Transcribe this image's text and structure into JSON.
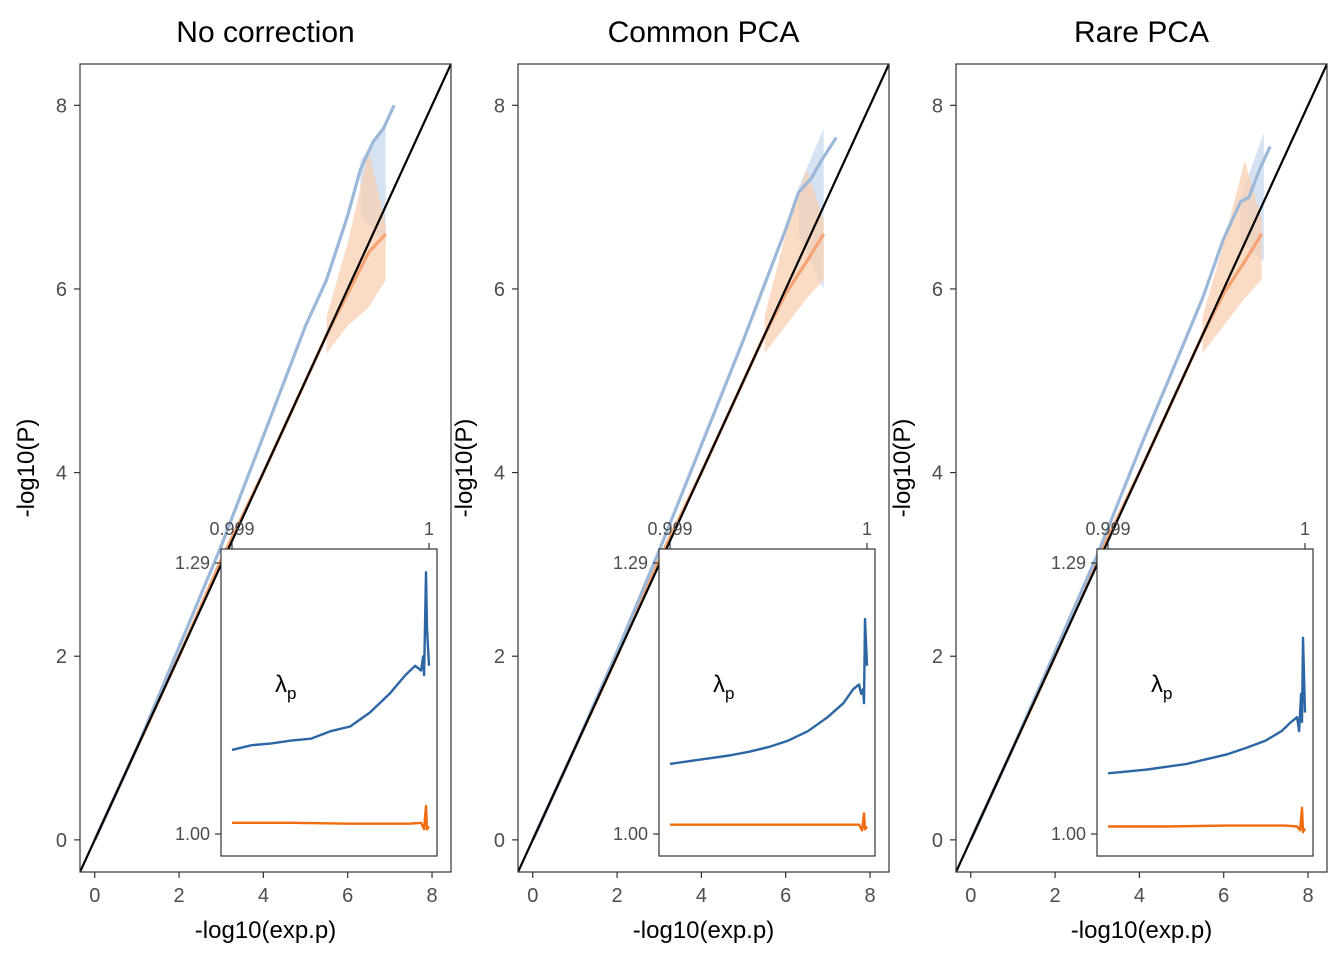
{
  "colors": {
    "observed_line": "#9bb8d8",
    "observed_band": "#c7d8ec",
    "expected_line": "#f4a371",
    "expected_band": "#f8cfb2",
    "diagonal": "#000000",
    "inset_blue": "#2c66a5",
    "inset_orange": "#f26b0f",
    "frame": "#333333",
    "tick_text": "#4d4d4d"
  },
  "chart_data": [
    {
      "type": "line",
      "title": "No correction",
      "xlabel": "-log10(exp.p)",
      "ylabel": "-log10(P)",
      "xlim": [
        -0.35,
        8.45
      ],
      "ylim": [
        -0.35,
        8.45
      ],
      "x_ticks": [
        "0",
        "2",
        "4",
        "6",
        "8"
      ],
      "y_ticks": [
        "0",
        "2",
        "4",
        "6",
        "8"
      ],
      "diagonal": true,
      "series": [
        {
          "color": "#9bb8d8",
          "points": [
            [
              0,
              0
            ],
            [
              1,
              1.0
            ],
            [
              2,
              2.1
            ],
            [
              3,
              3.2
            ],
            [
              4,
              4.4
            ],
            [
              5,
              5.6
            ],
            [
              5.5,
              6.1
            ],
            [
              6,
              6.8
            ],
            [
              6.3,
              7.3
            ],
            [
              6.6,
              7.6
            ],
            [
              6.85,
              7.75
            ],
            [
              7.1,
              8.0
            ]
          ],
          "band": {
            "x": [
              6.3,
              6.9
            ],
            "upper": [
              7.4,
              7.8
            ],
            "lower": [
              6.8,
              6.5
            ]
          }
        },
        {
          "color": "#f4a371",
          "points": [
            [
              0,
              0
            ],
            [
              1,
              1.0
            ],
            [
              2,
              2.0
            ],
            [
              3,
              3.05
            ],
            [
              4,
              4.0
            ],
            [
              5,
              5.0
            ],
            [
              5.5,
              5.5
            ],
            [
              6,
              5.95
            ],
            [
              6.5,
              6.4
            ],
            [
              6.9,
              6.6
            ]
          ],
          "band": {
            "x": [
              5.5,
              6.0,
              6.5,
              6.9
            ],
            "upper": [
              5.7,
              6.5,
              7.5,
              6.7
            ],
            "lower": [
              5.3,
              5.6,
              5.8,
              6.1
            ]
          }
        }
      ],
      "inset": {
        "x_ticks": [
          "0.999",
          "1"
        ],
        "y_ticks": [
          "1.29",
          "1.00"
        ],
        "ylim": [
          1.0,
          1.29
        ],
        "label": "λ",
        "label_subscript": "p",
        "series": [
          {
            "color": "#2c66a5",
            "points": [
              [
                0,
                1.09
              ],
              [
                0.1,
                1.095
              ],
              [
                0.2,
                1.097
              ],
              [
                0.3,
                1.1
              ],
              [
                0.4,
                1.102
              ],
              [
                0.5,
                1.11
              ],
              [
                0.6,
                1.115
              ],
              [
                0.7,
                1.13
              ],
              [
                0.8,
                1.15
              ],
              [
                0.88,
                1.17
              ],
              [
                0.93,
                1.18
              ],
              [
                0.96,
                1.175
              ],
              [
                0.97,
                1.19
              ],
              [
                0.975,
                1.17
              ],
              [
                0.985,
                1.28
              ],
              [
                0.99,
                1.22
              ],
              [
                1.0,
                1.18
              ]
            ]
          },
          {
            "color": "#f26b0f",
            "points": [
              [
                0,
                1.012
              ],
              [
                0.3,
                1.012
              ],
              [
                0.6,
                1.011
              ],
              [
                0.9,
                1.011
              ],
              [
                0.96,
                1.012
              ],
              [
                0.975,
                1.005
              ],
              [
                0.985,
                1.03
              ],
              [
                0.99,
                1.005
              ],
              [
                1.0,
                1.008
              ]
            ]
          }
        ]
      }
    },
    {
      "type": "line",
      "title": "Common PCA",
      "xlabel": "-log10(exp.p)",
      "ylabel": "-log10(P)",
      "xlim": [
        -0.35,
        8.45
      ],
      "ylim": [
        -0.35,
        8.45
      ],
      "x_ticks": [
        "0",
        "2",
        "4",
        "6",
        "8"
      ],
      "y_ticks": [
        "0",
        "2",
        "4",
        "6",
        "8"
      ],
      "diagonal": true,
      "series": [
        {
          "color": "#9bb8d8",
          "points": [
            [
              0,
              0
            ],
            [
              1,
              1.0
            ],
            [
              2,
              2.05
            ],
            [
              3,
              3.15
            ],
            [
              4,
              4.3
            ],
            [
              5,
              5.45
            ],
            [
              5.5,
              6.05
            ],
            [
              6,
              6.65
            ],
            [
              6.3,
              7.05
            ],
            [
              6.6,
              7.2
            ],
            [
              6.85,
              7.4
            ],
            [
              7.2,
              7.65
            ]
          ],
          "band": {
            "x": [
              6.3,
              6.9
            ],
            "upper": [
              7.1,
              7.75
            ],
            "lower": [
              6.6,
              6.0
            ]
          }
        },
        {
          "color": "#f4a371",
          "points": [
            [
              0,
              0
            ],
            [
              1,
              1.0
            ],
            [
              2,
              2.0
            ],
            [
              3,
              3.05
            ],
            [
              4,
              4.0
            ],
            [
              5,
              5.0
            ],
            [
              5.5,
              5.5
            ],
            [
              6,
              5.95
            ],
            [
              6.5,
              6.3
            ],
            [
              6.9,
              6.6
            ]
          ],
          "band": {
            "x": [
              5.5,
              6.0,
              6.5,
              6.9
            ],
            "upper": [
              5.7,
              6.6,
              7.3,
              6.75
            ],
            "lower": [
              5.3,
              5.6,
              5.9,
              6.1
            ]
          }
        }
      ],
      "inset": {
        "x_ticks": [
          "0.999",
          "1"
        ],
        "y_ticks": [
          "1.29",
          "1.00"
        ],
        "ylim": [
          1.0,
          1.29
        ],
        "label": "λ",
        "label_subscript": "p",
        "series": [
          {
            "color": "#2c66a5",
            "points": [
              [
                0,
                1.075
              ],
              [
                0.1,
                1.078
              ],
              [
                0.2,
                1.081
              ],
              [
                0.3,
                1.084
              ],
              [
                0.4,
                1.088
              ],
              [
                0.5,
                1.093
              ],
              [
                0.6,
                1.1
              ],
              [
                0.7,
                1.11
              ],
              [
                0.8,
                1.125
              ],
              [
                0.88,
                1.14
              ],
              [
                0.93,
                1.155
              ],
              [
                0.96,
                1.16
              ],
              [
                0.97,
                1.15
              ],
              [
                0.98,
                1.155
              ],
              [
                0.985,
                1.14
              ],
              [
                0.99,
                1.23
              ],
              [
                1.0,
                1.18
              ]
            ]
          },
          {
            "color": "#f26b0f",
            "points": [
              [
                0,
                1.01
              ],
              [
                0.3,
                1.01
              ],
              [
                0.6,
                1.01
              ],
              [
                0.9,
                1.01
              ],
              [
                0.96,
                1.01
              ],
              [
                0.975,
                1.004
              ],
              [
                0.985,
                1.022
              ],
              [
                0.99,
                1.005
              ],
              [
                1.0,
                1.008
              ]
            ]
          }
        ]
      }
    },
    {
      "type": "line",
      "title": "Rare PCA",
      "xlabel": "-log10(exp.p)",
      "ylabel": "-log10(P)",
      "xlim": [
        -0.35,
        8.45
      ],
      "ylim": [
        -0.35,
        8.45
      ],
      "x_ticks": [
        "0",
        "2",
        "4",
        "6",
        "8"
      ],
      "y_ticks": [
        "0",
        "2",
        "4",
        "6",
        "8"
      ],
      "diagonal": true,
      "series": [
        {
          "color": "#9bb8d8",
          "points": [
            [
              0,
              0
            ],
            [
              1,
              1.0
            ],
            [
              2,
              2.05
            ],
            [
              3,
              3.1
            ],
            [
              4,
              4.25
            ],
            [
              5,
              5.35
            ],
            [
              5.5,
              5.9
            ],
            [
              6,
              6.55
            ],
            [
              6.4,
              6.95
            ],
            [
              6.6,
              7.0
            ],
            [
              6.85,
              7.3
            ],
            [
              7.1,
              7.55
            ]
          ],
          "band": {
            "x": [
              6.4,
              6.95
            ],
            "upper": [
              7.0,
              7.7
            ],
            "lower": [
              6.5,
              6.3
            ]
          }
        },
        {
          "color": "#f4a371",
          "points": [
            [
              0,
              0
            ],
            [
              1,
              1.0
            ],
            [
              2,
              2.0
            ],
            [
              3,
              3.05
            ],
            [
              4,
              4.0
            ],
            [
              5,
              5.0
            ],
            [
              5.5,
              5.5
            ],
            [
              6,
              5.95
            ],
            [
              6.5,
              6.3
            ],
            [
              6.9,
              6.6
            ]
          ],
          "band": {
            "x": [
              5.5,
              6.0,
              6.5,
              6.9
            ],
            "upper": [
              5.7,
              6.5,
              7.4,
              6.75
            ],
            "lower": [
              5.3,
              5.6,
              5.9,
              6.1
            ]
          }
        }
      ],
      "inset": {
        "x_ticks": [
          "0.999",
          "1"
        ],
        "y_ticks": [
          "1.29",
          "1.00"
        ],
        "ylim": [
          1.0,
          1.29
        ],
        "label": "λ",
        "label_subscript": "p",
        "series": [
          {
            "color": "#2c66a5",
            "points": [
              [
                0,
                1.065
              ],
              [
                0.1,
                1.067
              ],
              [
                0.2,
                1.069
              ],
              [
                0.3,
                1.072
              ],
              [
                0.4,
                1.075
              ],
              [
                0.5,
                1.08
              ],
              [
                0.6,
                1.085
              ],
              [
                0.7,
                1.092
              ],
              [
                0.8,
                1.1
              ],
              [
                0.88,
                1.11
              ],
              [
                0.93,
                1.12
              ],
              [
                0.96,
                1.125
              ],
              [
                0.97,
                1.11
              ],
              [
                0.98,
                1.15
              ],
              [
                0.985,
                1.12
              ],
              [
                0.99,
                1.21
              ],
              [
                1.0,
                1.13
              ]
            ]
          },
          {
            "color": "#f26b0f",
            "points": [
              [
                0,
                1.008
              ],
              [
                0.3,
                1.008
              ],
              [
                0.6,
                1.009
              ],
              [
                0.9,
                1.009
              ],
              [
                0.96,
                1.008
              ],
              [
                0.975,
                1.004
              ],
              [
                0.985,
                1.028
              ],
              [
                0.99,
                1.002
              ],
              [
                1.0,
                1.006
              ]
            ]
          }
        ]
      }
    }
  ]
}
